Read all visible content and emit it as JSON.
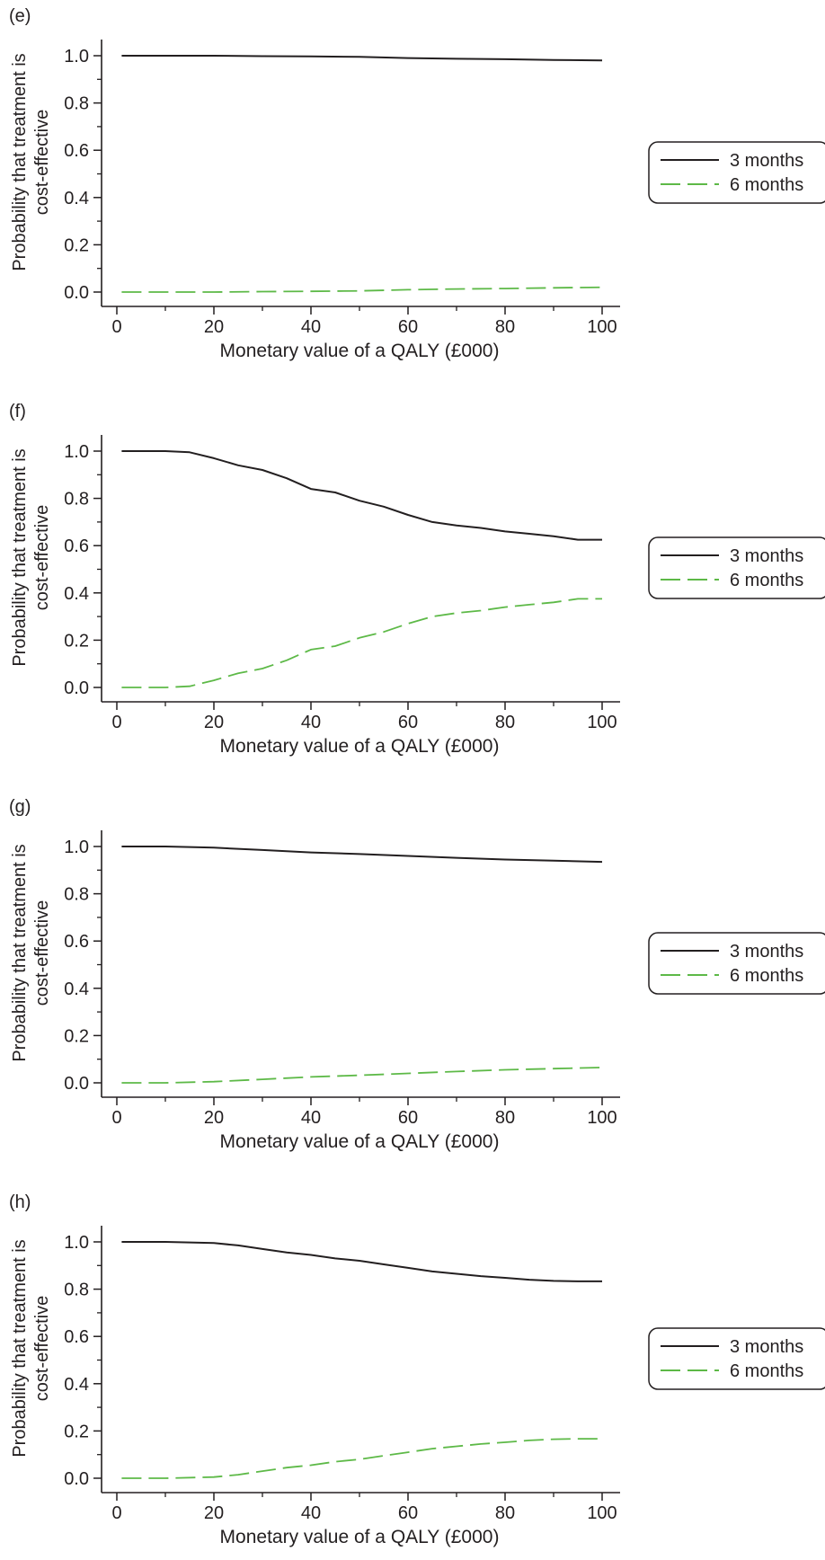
{
  "chart_data": [
    {
      "type": "line",
      "panel_label": "(e)",
      "xlabel": "Monetary value of a QALY (£000)",
      "ylabel": "Probability that treatment is cost-effective",
      "xlim": [
        0,
        100
      ],
      "ylim": [
        0,
        1
      ],
      "x_ticks": [
        0,
        20,
        40,
        60,
        80,
        100
      ],
      "y_ticks": [
        0.0,
        0.2,
        0.4,
        0.6,
        0.8,
        1.0
      ],
      "x_tick_labels": [
        "0",
        "20",
        "40",
        "60",
        "80",
        "100"
      ],
      "y_tick_labels": [
        "0.0",
        "0.2",
        "0.4",
        "0.6",
        "0.8",
        "1.0"
      ],
      "grid": false,
      "legend_position": "right",
      "x": [
        1,
        10,
        20,
        30,
        40,
        50,
        60,
        70,
        80,
        90,
        100
      ],
      "series": [
        {
          "name": "3 months",
          "color": "#231f20",
          "style": "solid",
          "values": [
            1.0,
            1.0,
            1.0,
            0.998,
            0.997,
            0.995,
            0.99,
            0.987,
            0.985,
            0.982,
            0.98
          ]
        },
        {
          "name": "6 months",
          "color": "#5db947",
          "style": "dashed",
          "values": [
            0.0,
            0.0,
            0.0,
            0.002,
            0.003,
            0.005,
            0.01,
            0.013,
            0.015,
            0.018,
            0.02
          ]
        }
      ]
    },
    {
      "type": "line",
      "panel_label": "(f)",
      "xlabel": "Monetary value of a QALY (£000)",
      "ylabel": "Probability that treatment is cost-effective",
      "xlim": [
        0,
        100
      ],
      "ylim": [
        0,
        1
      ],
      "x_ticks": [
        0,
        20,
        40,
        60,
        80,
        100
      ],
      "y_ticks": [
        0.0,
        0.2,
        0.4,
        0.6,
        0.8,
        1.0
      ],
      "x_tick_labels": [
        "0",
        "20",
        "40",
        "60",
        "80",
        "100"
      ],
      "y_tick_labels": [
        "0.0",
        "0.2",
        "0.4",
        "0.6",
        "0.8",
        "1.0"
      ],
      "grid": false,
      "legend_position": "right",
      "x": [
        1,
        10,
        15,
        20,
        25,
        30,
        35,
        40,
        45,
        50,
        55,
        60,
        65,
        70,
        75,
        80,
        85,
        90,
        95,
        100
      ],
      "series": [
        {
          "name": "3 months",
          "color": "#231f20",
          "style": "solid",
          "values": [
            1.0,
            1.0,
            0.995,
            0.97,
            0.94,
            0.92,
            0.885,
            0.84,
            0.825,
            0.79,
            0.765,
            0.73,
            0.7,
            0.685,
            0.675,
            0.66,
            0.65,
            0.64,
            0.625,
            0.625
          ]
        },
        {
          "name": "6 months",
          "color": "#5db947",
          "style": "dashed",
          "values": [
            0.0,
            0.0,
            0.005,
            0.03,
            0.06,
            0.08,
            0.115,
            0.16,
            0.175,
            0.21,
            0.235,
            0.27,
            0.3,
            0.315,
            0.325,
            0.34,
            0.35,
            0.36,
            0.375,
            0.375
          ]
        }
      ]
    },
    {
      "type": "line",
      "panel_label": "(g)",
      "xlabel": "Monetary value of a QALY (£000)",
      "ylabel": "Probability that treatment is cost-effective",
      "xlim": [
        0,
        100
      ],
      "ylim": [
        0,
        1
      ],
      "x_ticks": [
        0,
        20,
        40,
        60,
        80,
        100
      ],
      "y_ticks": [
        0.0,
        0.2,
        0.4,
        0.6,
        0.8,
        1.0
      ],
      "x_tick_labels": [
        "0",
        "20",
        "40",
        "60",
        "80",
        "100"
      ],
      "y_tick_labels": [
        "0.0",
        "0.2",
        "0.4",
        "0.6",
        "0.8",
        "1.0"
      ],
      "grid": false,
      "legend_position": "right",
      "x": [
        1,
        10,
        20,
        30,
        40,
        50,
        60,
        70,
        80,
        90,
        100
      ],
      "series": [
        {
          "name": "3 months",
          "color": "#231f20",
          "style": "solid",
          "values": [
            1.0,
            1.0,
            0.995,
            0.985,
            0.975,
            0.968,
            0.96,
            0.952,
            0.945,
            0.94,
            0.935
          ]
        },
        {
          "name": "6 months",
          "color": "#5db947",
          "style": "dashed",
          "values": [
            0.0,
            0.0,
            0.005,
            0.015,
            0.025,
            0.032,
            0.04,
            0.048,
            0.055,
            0.06,
            0.065
          ]
        }
      ]
    },
    {
      "type": "line",
      "panel_label": "(h)",
      "xlabel": "Monetary value of a QALY (£000)",
      "ylabel": "Probability that treatment is cost-effective",
      "xlim": [
        0,
        100
      ],
      "ylim": [
        0,
        1
      ],
      "x_ticks": [
        0,
        20,
        40,
        60,
        80,
        100
      ],
      "y_ticks": [
        0.0,
        0.2,
        0.4,
        0.6,
        0.8,
        1.0
      ],
      "x_tick_labels": [
        "0",
        "20",
        "40",
        "60",
        "80",
        "100"
      ],
      "y_tick_labels": [
        "0.0",
        "0.2",
        "0.4",
        "0.6",
        "0.8",
        "1.0"
      ],
      "grid": false,
      "legend_position": "right",
      "x": [
        1,
        10,
        20,
        25,
        30,
        35,
        40,
        45,
        50,
        55,
        60,
        65,
        70,
        75,
        80,
        85,
        90,
        95,
        100
      ],
      "series": [
        {
          "name": "3 months",
          "color": "#231f20",
          "style": "solid",
          "values": [
            1.0,
            1.0,
            0.995,
            0.985,
            0.97,
            0.955,
            0.945,
            0.93,
            0.92,
            0.905,
            0.89,
            0.875,
            0.865,
            0.855,
            0.848,
            0.84,
            0.835,
            0.833,
            0.833
          ]
        },
        {
          "name": "6 months",
          "color": "#5db947",
          "style": "dashed",
          "values": [
            0.0,
            0.0,
            0.005,
            0.015,
            0.03,
            0.045,
            0.055,
            0.07,
            0.08,
            0.095,
            0.11,
            0.125,
            0.135,
            0.145,
            0.152,
            0.16,
            0.165,
            0.167,
            0.167
          ]
        }
      ]
    }
  ]
}
